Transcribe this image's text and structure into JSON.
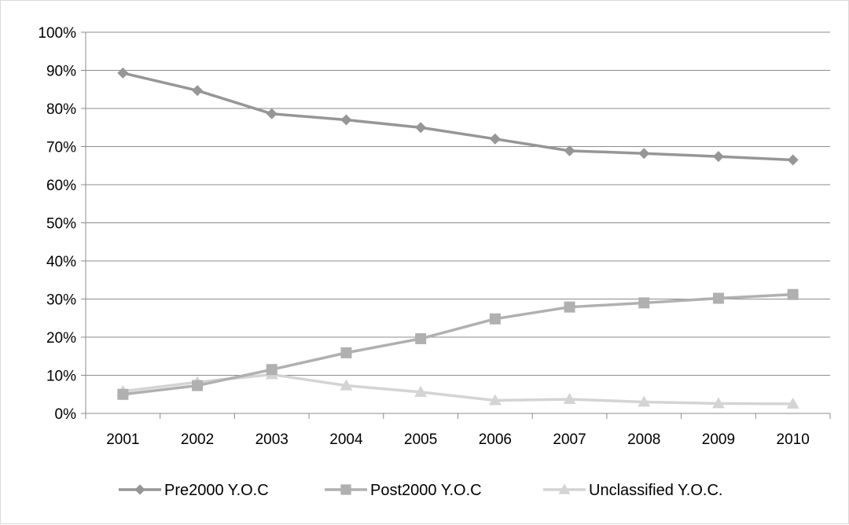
{
  "chart_data": {
    "type": "line",
    "title": "",
    "xlabel": "",
    "ylabel": "",
    "categories": [
      "2001",
      "2002",
      "2003",
      "2004",
      "2005",
      "2006",
      "2007",
      "2008",
      "2009",
      "2010"
    ],
    "ylim": [
      0,
      100
    ],
    "y_ticks": [
      "0%",
      "10%",
      "20%",
      "30%",
      "40%",
      "50%",
      "60%",
      "70%",
      "80%",
      "90%",
      "100%"
    ],
    "grid": true,
    "legend_position": "bottom",
    "series": [
      {
        "name": "Pre2000 Y.O.C",
        "marker": "diamond",
        "color": "#969696",
        "values": [
          89.3,
          84.7,
          78.6,
          77.0,
          75.0,
          72.0,
          68.9,
          68.2,
          67.4,
          66.5
        ]
      },
      {
        "name": "Post2000 Y.O.C",
        "marker": "square",
        "color": "#b0b0b0",
        "values": [
          5.0,
          7.3,
          11.5,
          15.9,
          19.6,
          24.8,
          27.9,
          29.0,
          30.2,
          31.2
        ]
      },
      {
        "name": "Unclassified Y.O.C.",
        "marker": "triangle",
        "color": "#d4d4d4",
        "values": [
          5.8,
          8.2,
          10.2,
          7.3,
          5.6,
          3.4,
          3.7,
          3.0,
          2.6,
          2.5
        ]
      }
    ]
  }
}
